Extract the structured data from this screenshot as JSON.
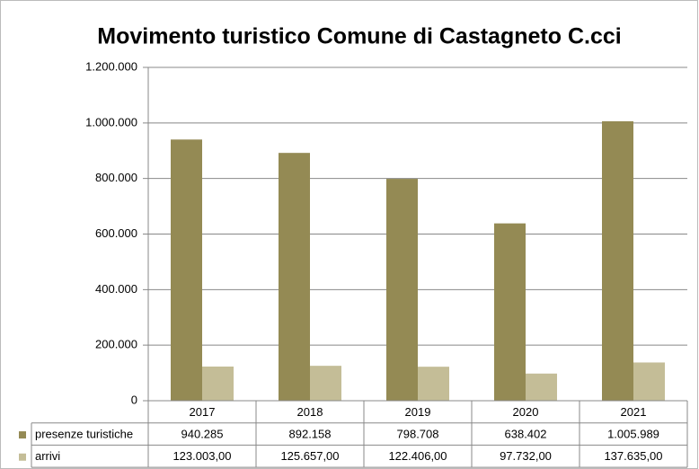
{
  "chart_data": {
    "type": "bar",
    "title": "Movimento turistico Comune di Castagneto C.cci",
    "categories": [
      "2017",
      "2018",
      "2019",
      "2020",
      "2021"
    ],
    "series": [
      {
        "name": "presenze turistiche",
        "color": "#948a54",
        "values": [
          940285,
          892158,
          798708,
          638402,
          1005989
        ],
        "value_labels": [
          "940.285",
          "892.158",
          "798.708",
          "638.402",
          "1.005.989"
        ]
      },
      {
        "name": "arrivi",
        "color": "#c4bd97",
        "values": [
          123003,
          125657,
          122406,
          97732,
          137635
        ],
        "value_labels": [
          "123.003,00",
          "125.657,00",
          "122.406,00",
          "97.732,00",
          "137.635,00"
        ]
      }
    ],
    "ylim": [
      0,
      1200000
    ],
    "yticks": [
      0,
      {
        "value": 200000,
        "label": "200.000"
      },
      {
        "value": 400000,
        "label": "400.000"
      },
      {
        "value": 600000,
        "label": "600.000"
      },
      {
        "value": 800000,
        "label": "800.000"
      },
      {
        "value": 1000000,
        "label": "1.000.000"
      },
      {
        "value": 1200000,
        "label": "1.200.000"
      }
    ],
    "grid": true
  }
}
